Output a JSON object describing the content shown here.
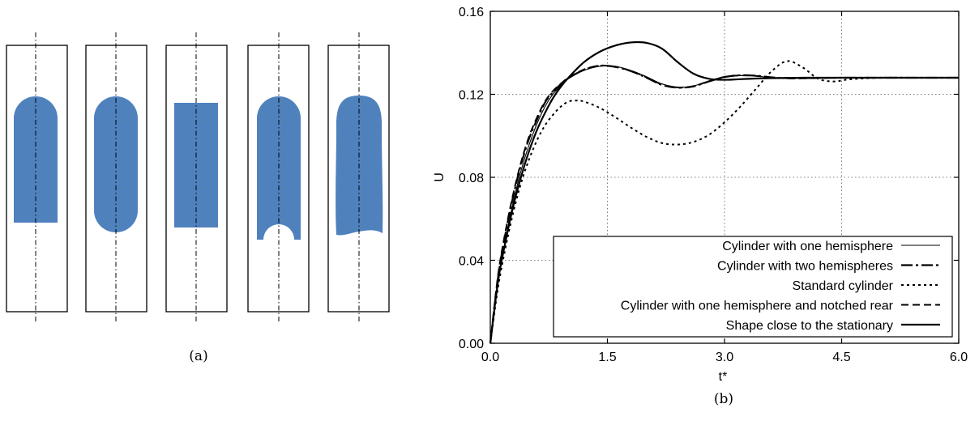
{
  "panel_a": {
    "label": "(a)",
    "shapes": [
      {
        "kind": "cylinder-one-hemisphere"
      },
      {
        "kind": "cylinder-two-hemispheres"
      },
      {
        "kind": "standard-cylinder"
      },
      {
        "kind": "cylinder-hemisphere-notched-rear"
      },
      {
        "kind": "stationary-shape"
      }
    ],
    "fill_color": "#4f81bd"
  },
  "panel_b": {
    "label": "(b)"
  },
  "chart_data": {
    "type": "line",
    "xlabel": "t*",
    "ylabel": "U",
    "xlim": [
      0,
      6
    ],
    "ylim": [
      0,
      0.16
    ],
    "xticks": [
      "0.0",
      "1.5",
      "3.0",
      "4.5",
      "6.0"
    ],
    "yticks": [
      "0.00",
      "0.04",
      "0.08",
      "0.12",
      "0.16"
    ],
    "grid": true,
    "legend_position": "bottom-right",
    "series": [
      {
        "name": "Cylinder with one hemisphere",
        "style": "thin-solid",
        "x": [
          0,
          0.1,
          0.2,
          0.3,
          0.4,
          0.5,
          0.6,
          0.7,
          0.8,
          0.9,
          1.0,
          1.2,
          1.4,
          1.6,
          1.8,
          2.0,
          2.2,
          2.4,
          2.6,
          2.8,
          3.0,
          3.2,
          3.4,
          3.6,
          3.8,
          4.0,
          4.5,
          5.0,
          5.5,
          6.0
        ],
        "y": [
          0,
          0.03,
          0.051,
          0.069,
          0.084,
          0.096,
          0.106,
          0.114,
          0.12,
          0.124,
          0.1275,
          0.1315,
          0.1335,
          0.1335,
          0.1315,
          0.1285,
          0.125,
          0.1235,
          0.124,
          0.1265,
          0.1285,
          0.129,
          0.1288,
          0.128,
          0.1277,
          0.1277,
          0.128,
          0.128,
          0.128,
          0.128
        ]
      },
      {
        "name": "Cylinder with two hemispheres",
        "style": "long-dash-dot",
        "x": [
          0,
          0.1,
          0.2,
          0.3,
          0.4,
          0.5,
          0.6,
          0.7,
          0.8,
          0.9,
          1.0,
          1.2,
          1.4,
          1.6,
          1.8,
          2.0,
          2.2,
          2.4,
          2.6,
          2.8,
          3.0,
          3.2,
          3.4,
          3.6,
          3.8,
          4.0,
          4.5,
          5.0,
          5.5,
          6.0
        ],
        "y": [
          0,
          0.032,
          0.054,
          0.072,
          0.087,
          0.099,
          0.108,
          0.116,
          0.121,
          0.1248,
          0.1278,
          0.1318,
          0.1338,
          0.1332,
          0.1312,
          0.128,
          0.1245,
          0.1232,
          0.1238,
          0.1262,
          0.1283,
          0.1292,
          0.129,
          0.1282,
          0.1278,
          0.1278,
          0.128,
          0.128,
          0.128,
          0.128
        ]
      },
      {
        "name": "Standard cylinder",
        "style": "dotted",
        "x": [
          0,
          0.1,
          0.2,
          0.3,
          0.4,
          0.5,
          0.6,
          0.7,
          0.8,
          0.9,
          1.0,
          1.1,
          1.2,
          1.4,
          1.6,
          1.8,
          2.0,
          2.2,
          2.4,
          2.6,
          2.8,
          3.0,
          3.2,
          3.4,
          3.6,
          3.8,
          4.0,
          4.2,
          4.4,
          4.6,
          5.0,
          5.5,
          6.0
        ],
        "y": [
          0,
          0.027,
          0.047,
          0.064,
          0.078,
          0.089,
          0.098,
          0.105,
          0.11,
          0.114,
          0.1165,
          0.117,
          0.1165,
          0.1135,
          0.109,
          0.104,
          0.0995,
          0.0965,
          0.0958,
          0.097,
          0.1005,
          0.1065,
          0.114,
          0.1225,
          0.131,
          0.136,
          0.133,
          0.1275,
          0.1262,
          0.1272,
          0.128,
          0.128,
          0.128
        ]
      },
      {
        "name": "Cylinder with one hemisphere and notched rear",
        "style": "dashed",
        "x": [
          0,
          0.1,
          0.2,
          0.3,
          0.4,
          0.5,
          0.6,
          0.7,
          0.8,
          0.9,
          1.0,
          1.2,
          1.4,
          1.6,
          1.8,
          2.0,
          2.2,
          2.4,
          2.6,
          2.8,
          3.0,
          3.2,
          3.4,
          3.6,
          3.8,
          4.0,
          4.5,
          5.0,
          5.5,
          6.0
        ],
        "y": [
          0,
          0.033,
          0.055,
          0.073,
          0.088,
          0.1,
          0.109,
          0.1165,
          0.1215,
          0.125,
          0.128,
          0.132,
          0.1338,
          0.1333,
          0.1313,
          0.1282,
          0.1247,
          0.1233,
          0.1239,
          0.1263,
          0.1284,
          0.1291,
          0.1289,
          0.1281,
          0.1277,
          0.1277,
          0.128,
          0.128,
          0.128,
          0.128
        ]
      },
      {
        "name": "Shape close to the stationary",
        "style": "thick-solid",
        "x": [
          0,
          0.1,
          0.2,
          0.3,
          0.4,
          0.5,
          0.6,
          0.7,
          0.8,
          0.9,
          1.0,
          1.2,
          1.4,
          1.6,
          1.8,
          2.0,
          2.2,
          2.4,
          2.6,
          2.8,
          3.0,
          3.2,
          3.4,
          3.6,
          3.8,
          4.0,
          4.5,
          5.0,
          5.5,
          6.0
        ],
        "y": [
          0,
          0.03,
          0.05,
          0.067,
          0.081,
          0.093,
          0.103,
          0.111,
          0.118,
          0.1235,
          0.128,
          0.1355,
          0.1405,
          0.1435,
          0.145,
          0.1448,
          0.142,
          0.1355,
          0.13,
          0.1275,
          0.127,
          0.1273,
          0.1276,
          0.1278,
          0.1279,
          0.128,
          0.128,
          0.128,
          0.128,
          0.128
        ]
      }
    ]
  }
}
